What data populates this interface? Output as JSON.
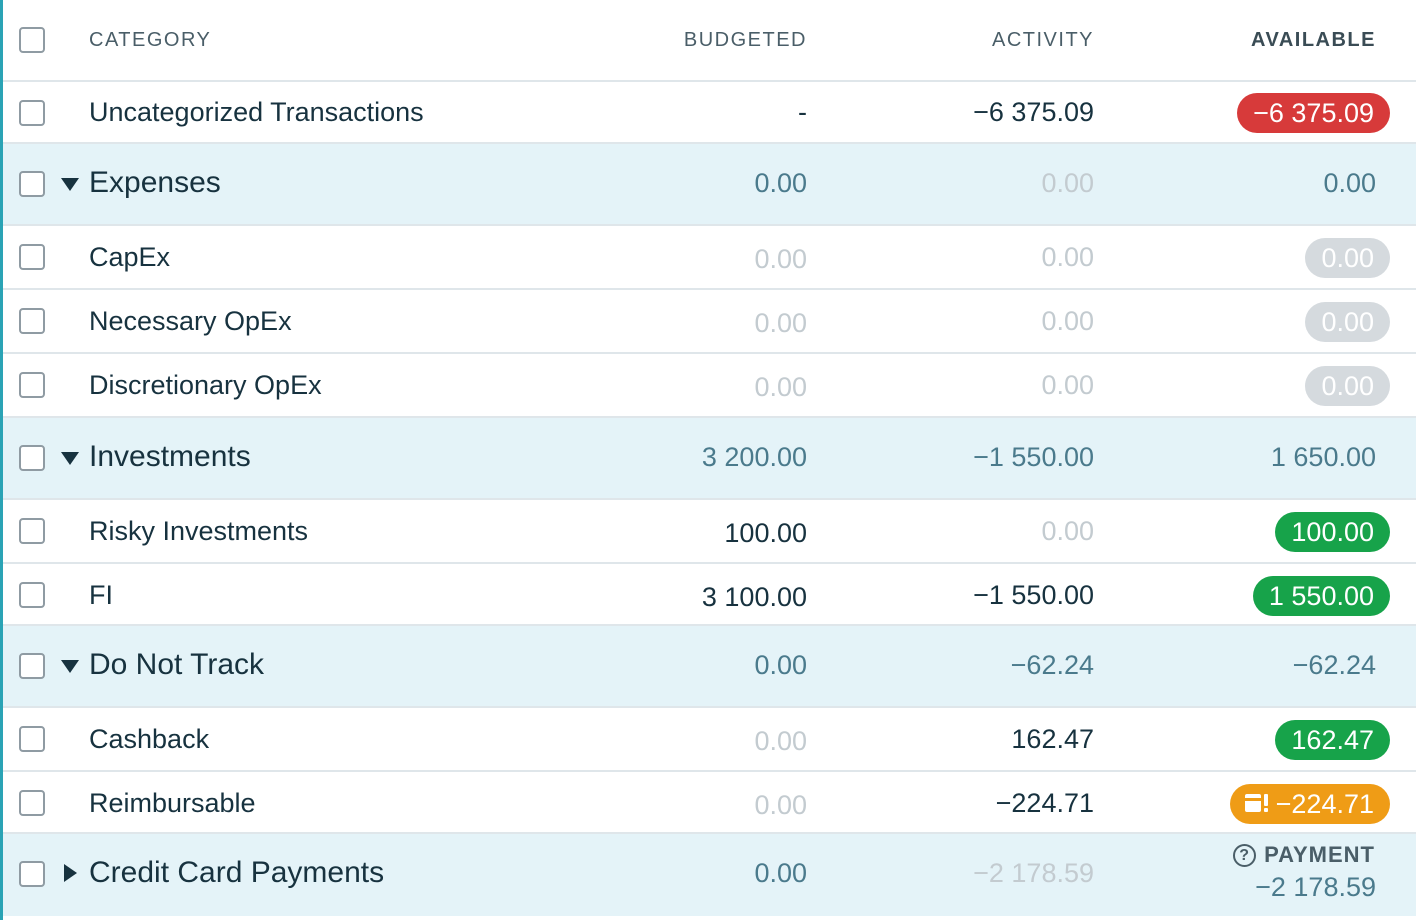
{
  "header": {
    "category": "CATEGORY",
    "budgeted": "BUDGETED",
    "activity": "ACTIVITY",
    "available": "AVAILABLE"
  },
  "rows": [
    {
      "name": "Uncategorized Transactions",
      "budgeted": "-",
      "activity": "−6 375.09",
      "available": "−6 375.09",
      "available_style": "red-pill"
    },
    {
      "name": "Expenses",
      "group": true,
      "caret": "expanded",
      "budgeted": "0.00",
      "activity": "0.00",
      "available": "0.00"
    },
    {
      "name": "CapEx",
      "budgeted": "0.00",
      "activity": "0.00",
      "available": "0.00",
      "available_style": "gray-pill"
    },
    {
      "name": "Necessary OpEx",
      "budgeted": "0.00",
      "activity": "0.00",
      "available": "0.00",
      "available_style": "gray-pill"
    },
    {
      "name": "Discretionary OpEx",
      "budgeted": "0.00",
      "activity": "0.00",
      "available": "0.00",
      "available_style": "gray-pill"
    },
    {
      "name": "Investments",
      "group": true,
      "caret": "expanded",
      "budgeted": "3 200.00",
      "activity": "−1 550.00",
      "available": "1 650.00"
    },
    {
      "name": "Risky Investments",
      "budgeted": "100.00",
      "activity": "0.00",
      "available": "100.00",
      "available_style": "green-pill"
    },
    {
      "name": "FI",
      "budgeted": "3 100.00",
      "activity": "−1 550.00",
      "available": "1 550.00",
      "available_style": "green-pill"
    },
    {
      "name": "Do Not Track",
      "group": true,
      "caret": "expanded",
      "budgeted": "0.00",
      "activity": "−62.24",
      "available": "−62.24"
    },
    {
      "name": "Cashback",
      "budgeted": "0.00",
      "activity": "162.47",
      "available": "162.47",
      "available_style": "green-pill"
    },
    {
      "name": "Reimbursable",
      "budgeted": "0.00",
      "activity": "−224.71",
      "available": "−224.71",
      "available_style": "orange-pill",
      "available_icon": "credit-card-alert-icon"
    },
    {
      "name": "Credit Card Payments",
      "group": true,
      "caret": "collapsed",
      "budgeted": "0.00",
      "activity": "−2 178.59",
      "available_label": "PAYMENT",
      "available_label_icon": "question-circle-icon",
      "available": "−2 178.59"
    }
  ],
  "colors": {
    "red_pill": "#d73a3a",
    "green_pill": "#17a34a",
    "gray_pill": "#d5dade",
    "orange_pill": "#ef9c16",
    "group_background": "#e4f3f8",
    "accent_bar": "#2aa3b5"
  }
}
